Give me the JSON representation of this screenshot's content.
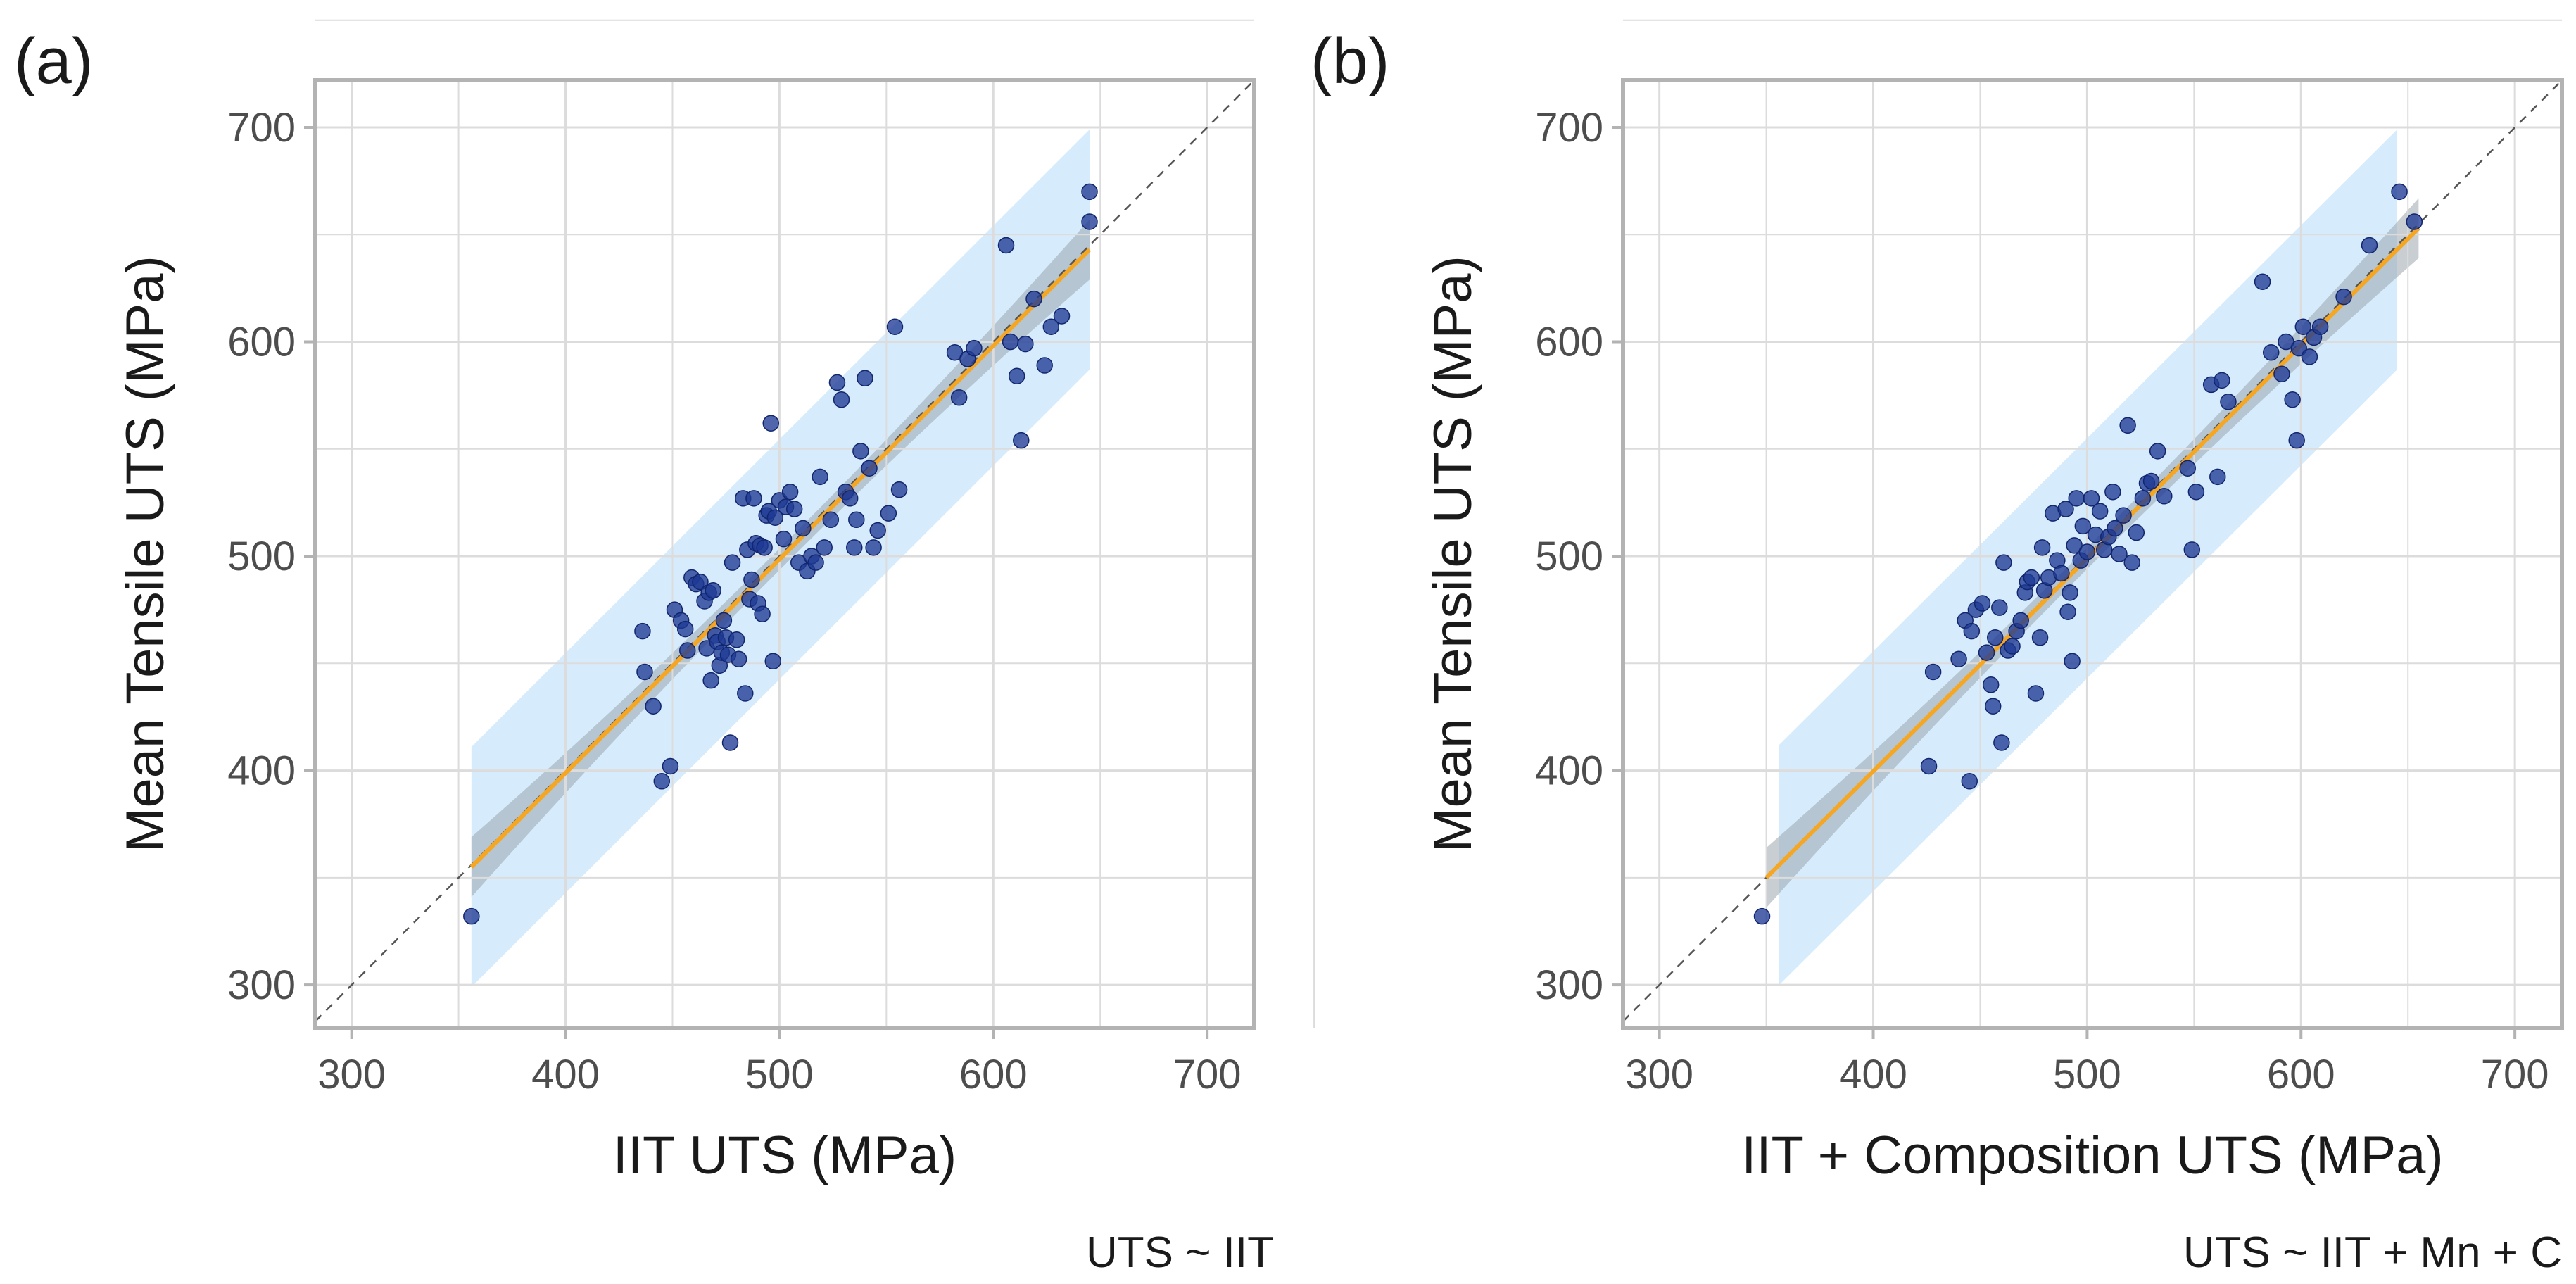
{
  "colors": {
    "grid": "#dcdcdc",
    "frame": "#b3b3b3",
    "tick_text": "#4d4d4d",
    "axis_title": "#1a1a1a",
    "points": "#1f3a93",
    "fit_line": "#f5a623",
    "confidence_band": "#9aa5ad",
    "prediction_band": "#cfe9fb",
    "identity_line": "#555555"
  },
  "chart_data": [
    {
      "type": "scatter",
      "panel_label": "(a)",
      "caption": "UTS ~ IIT",
      "xlabel": "IIT UTS (MPa)",
      "ylabel": "Mean Tensile UTS (MPa)",
      "xlim": [
        283,
        722
      ],
      "ylim": [
        280,
        722
      ],
      "xticks": [
        300,
        400,
        500,
        600,
        700
      ],
      "yticks": [
        300,
        400,
        500,
        600,
        700
      ],
      "grid": true,
      "identity_line": true,
      "fit": {
        "x_range": [
          356,
          645
        ],
        "y_range": [
          355,
          643
        ]
      },
      "confidence_band": {
        "x_range": [
          356,
          645
        ],
        "half_width_ends": 14,
        "half_width_mid": 5
      },
      "prediction_band": {
        "x_range": [
          356,
          645
        ],
        "half_width": 56
      },
      "points": [
        [
          356,
          332
        ],
        [
          436,
          465
        ],
        [
          437,
          446
        ],
        [
          441,
          430
        ],
        [
          445,
          395
        ],
        [
          449,
          402
        ],
        [
          451,
          475
        ],
        [
          454,
          470
        ],
        [
          456,
          466
        ],
        [
          457,
          456
        ],
        [
          459,
          490
        ],
        [
          461,
          487
        ],
        [
          463,
          488
        ],
        [
          465,
          479
        ],
        [
          466,
          457
        ],
        [
          467,
          483
        ],
        [
          468,
          442
        ],
        [
          469,
          484
        ],
        [
          470,
          463
        ],
        [
          471,
          460
        ],
        [
          472,
          449
        ],
        [
          473,
          455
        ],
        [
          474,
          470
        ],
        [
          475,
          462
        ],
        [
          476,
          454
        ],
        [
          477,
          413
        ],
        [
          478,
          497
        ],
        [
          480,
          461
        ],
        [
          481,
          452
        ],
        [
          483,
          527
        ],
        [
          484,
          436
        ],
        [
          485,
          503
        ],
        [
          486,
          480
        ],
        [
          487,
          489
        ],
        [
          488,
          527
        ],
        [
          489,
          506
        ],
        [
          490,
          478
        ],
        [
          491,
          505
        ],
        [
          492,
          473
        ],
        [
          493,
          504
        ],
        [
          494,
          519
        ],
        [
          495,
          521
        ],
        [
          496,
          562
        ],
        [
          497,
          451
        ],
        [
          498,
          518
        ],
        [
          500,
          526
        ],
        [
          502,
          508
        ],
        [
          503,
          523
        ],
        [
          505,
          530
        ],
        [
          507,
          522
        ],
        [
          509,
          497
        ],
        [
          511,
          513
        ],
        [
          513,
          493
        ],
        [
          515,
          500
        ],
        [
          517,
          497
        ],
        [
          519,
          537
        ],
        [
          521,
          504
        ],
        [
          524,
          517
        ],
        [
          527,
          581
        ],
        [
          529,
          573
        ],
        [
          531,
          530
        ],
        [
          533,
          527
        ],
        [
          535,
          504
        ],
        [
          536,
          517
        ],
        [
          538,
          549
        ],
        [
          540,
          583
        ],
        [
          542,
          541
        ],
        [
          544,
          504
        ],
        [
          546,
          512
        ],
        [
          551,
          520
        ],
        [
          554,
          607
        ],
        [
          556,
          531
        ],
        [
          582,
          595
        ],
        [
          584,
          574
        ],
        [
          588,
          592
        ],
        [
          591,
          597
        ],
        [
          606,
          645
        ],
        [
          608,
          600
        ],
        [
          611,
          584
        ],
        [
          613,
          554
        ],
        [
          615,
          599
        ],
        [
          619,
          620
        ],
        [
          624,
          589
        ],
        [
          627,
          607
        ],
        [
          632,
          612
        ],
        [
          645,
          670
        ],
        [
          645,
          656
        ]
      ]
    },
    {
      "type": "scatter",
      "panel_label": "(b)",
      "caption": "UTS ~ IIT + Mn + C",
      "xlabel": "IIT + Composition UTS (MPa)",
      "ylabel": "Mean Tensile UTS (MPa)",
      "xlim": [
        283,
        722
      ],
      "ylim": [
        280,
        722
      ],
      "xticks": [
        300,
        400,
        500,
        600,
        700
      ],
      "yticks": [
        300,
        400,
        500,
        600,
        700
      ],
      "grid": true,
      "identity_line": true,
      "fit": {
        "x_range": [
          350,
          655
        ],
        "y_range": [
          350,
          653
        ]
      },
      "confidence_band": {
        "x_range": [
          350,
          655
        ],
        "half_width_ends": 14,
        "half_width_mid": 5
      },
      "prediction_band": {
        "x_range": [
          356,
          645
        ],
        "half_width": 56
      },
      "points": [
        [
          348,
          332
        ],
        [
          426,
          402
        ],
        [
          428,
          446
        ],
        [
          440,
          452
        ],
        [
          443,
          470
        ],
        [
          445,
          395
        ],
        [
          446,
          465
        ],
        [
          448,
          475
        ],
        [
          451,
          478
        ],
        [
          453,
          455
        ],
        [
          455,
          440
        ],
        [
          456,
          430
        ],
        [
          457,
          462
        ],
        [
          459,
          476
        ],
        [
          460,
          413
        ],
        [
          461,
          497
        ],
        [
          463,
          456
        ],
        [
          465,
          458
        ],
        [
          467,
          465
        ],
        [
          469,
          470
        ],
        [
          471,
          483
        ],
        [
          472,
          488
        ],
        [
          474,
          490
        ],
        [
          476,
          436
        ],
        [
          478,
          462
        ],
        [
          479,
          504
        ],
        [
          480,
          484
        ],
        [
          482,
          490
        ],
        [
          484,
          520
        ],
        [
          486,
          498
        ],
        [
          488,
          492
        ],
        [
          490,
          522
        ],
        [
          491,
          474
        ],
        [
          492,
          483
        ],
        [
          493,
          451
        ],
        [
          494,
          505
        ],
        [
          495,
          527
        ],
        [
          497,
          498
        ],
        [
          498,
          514
        ],
        [
          500,
          502
        ],
        [
          502,
          527
        ],
        [
          504,
          510
        ],
        [
          506,
          521
        ],
        [
          508,
          503
        ],
        [
          510,
          509
        ],
        [
          512,
          530
        ],
        [
          513,
          513
        ],
        [
          515,
          501
        ],
        [
          517,
          519
        ],
        [
          519,
          561
        ],
        [
          521,
          497
        ],
        [
          523,
          511
        ],
        [
          526,
          527
        ],
        [
          528,
          534
        ],
        [
          530,
          535
        ],
        [
          533,
          549
        ],
        [
          536,
          528
        ],
        [
          547,
          541
        ],
        [
          549,
          503
        ],
        [
          551,
          530
        ],
        [
          558,
          580
        ],
        [
          561,
          537
        ],
        [
          563,
          582
        ],
        [
          566,
          572
        ],
        [
          582,
          628
        ],
        [
          586,
          595
        ],
        [
          591,
          585
        ],
        [
          593,
          600
        ],
        [
          596,
          573
        ],
        [
          598,
          554
        ],
        [
          599,
          597
        ],
        [
          601,
          607
        ],
        [
          604,
          593
        ],
        [
          606,
          602
        ],
        [
          609,
          607
        ],
        [
          620,
          621
        ],
        [
          632,
          645
        ],
        [
          646,
          670
        ],
        [
          653,
          656
        ]
      ]
    }
  ]
}
